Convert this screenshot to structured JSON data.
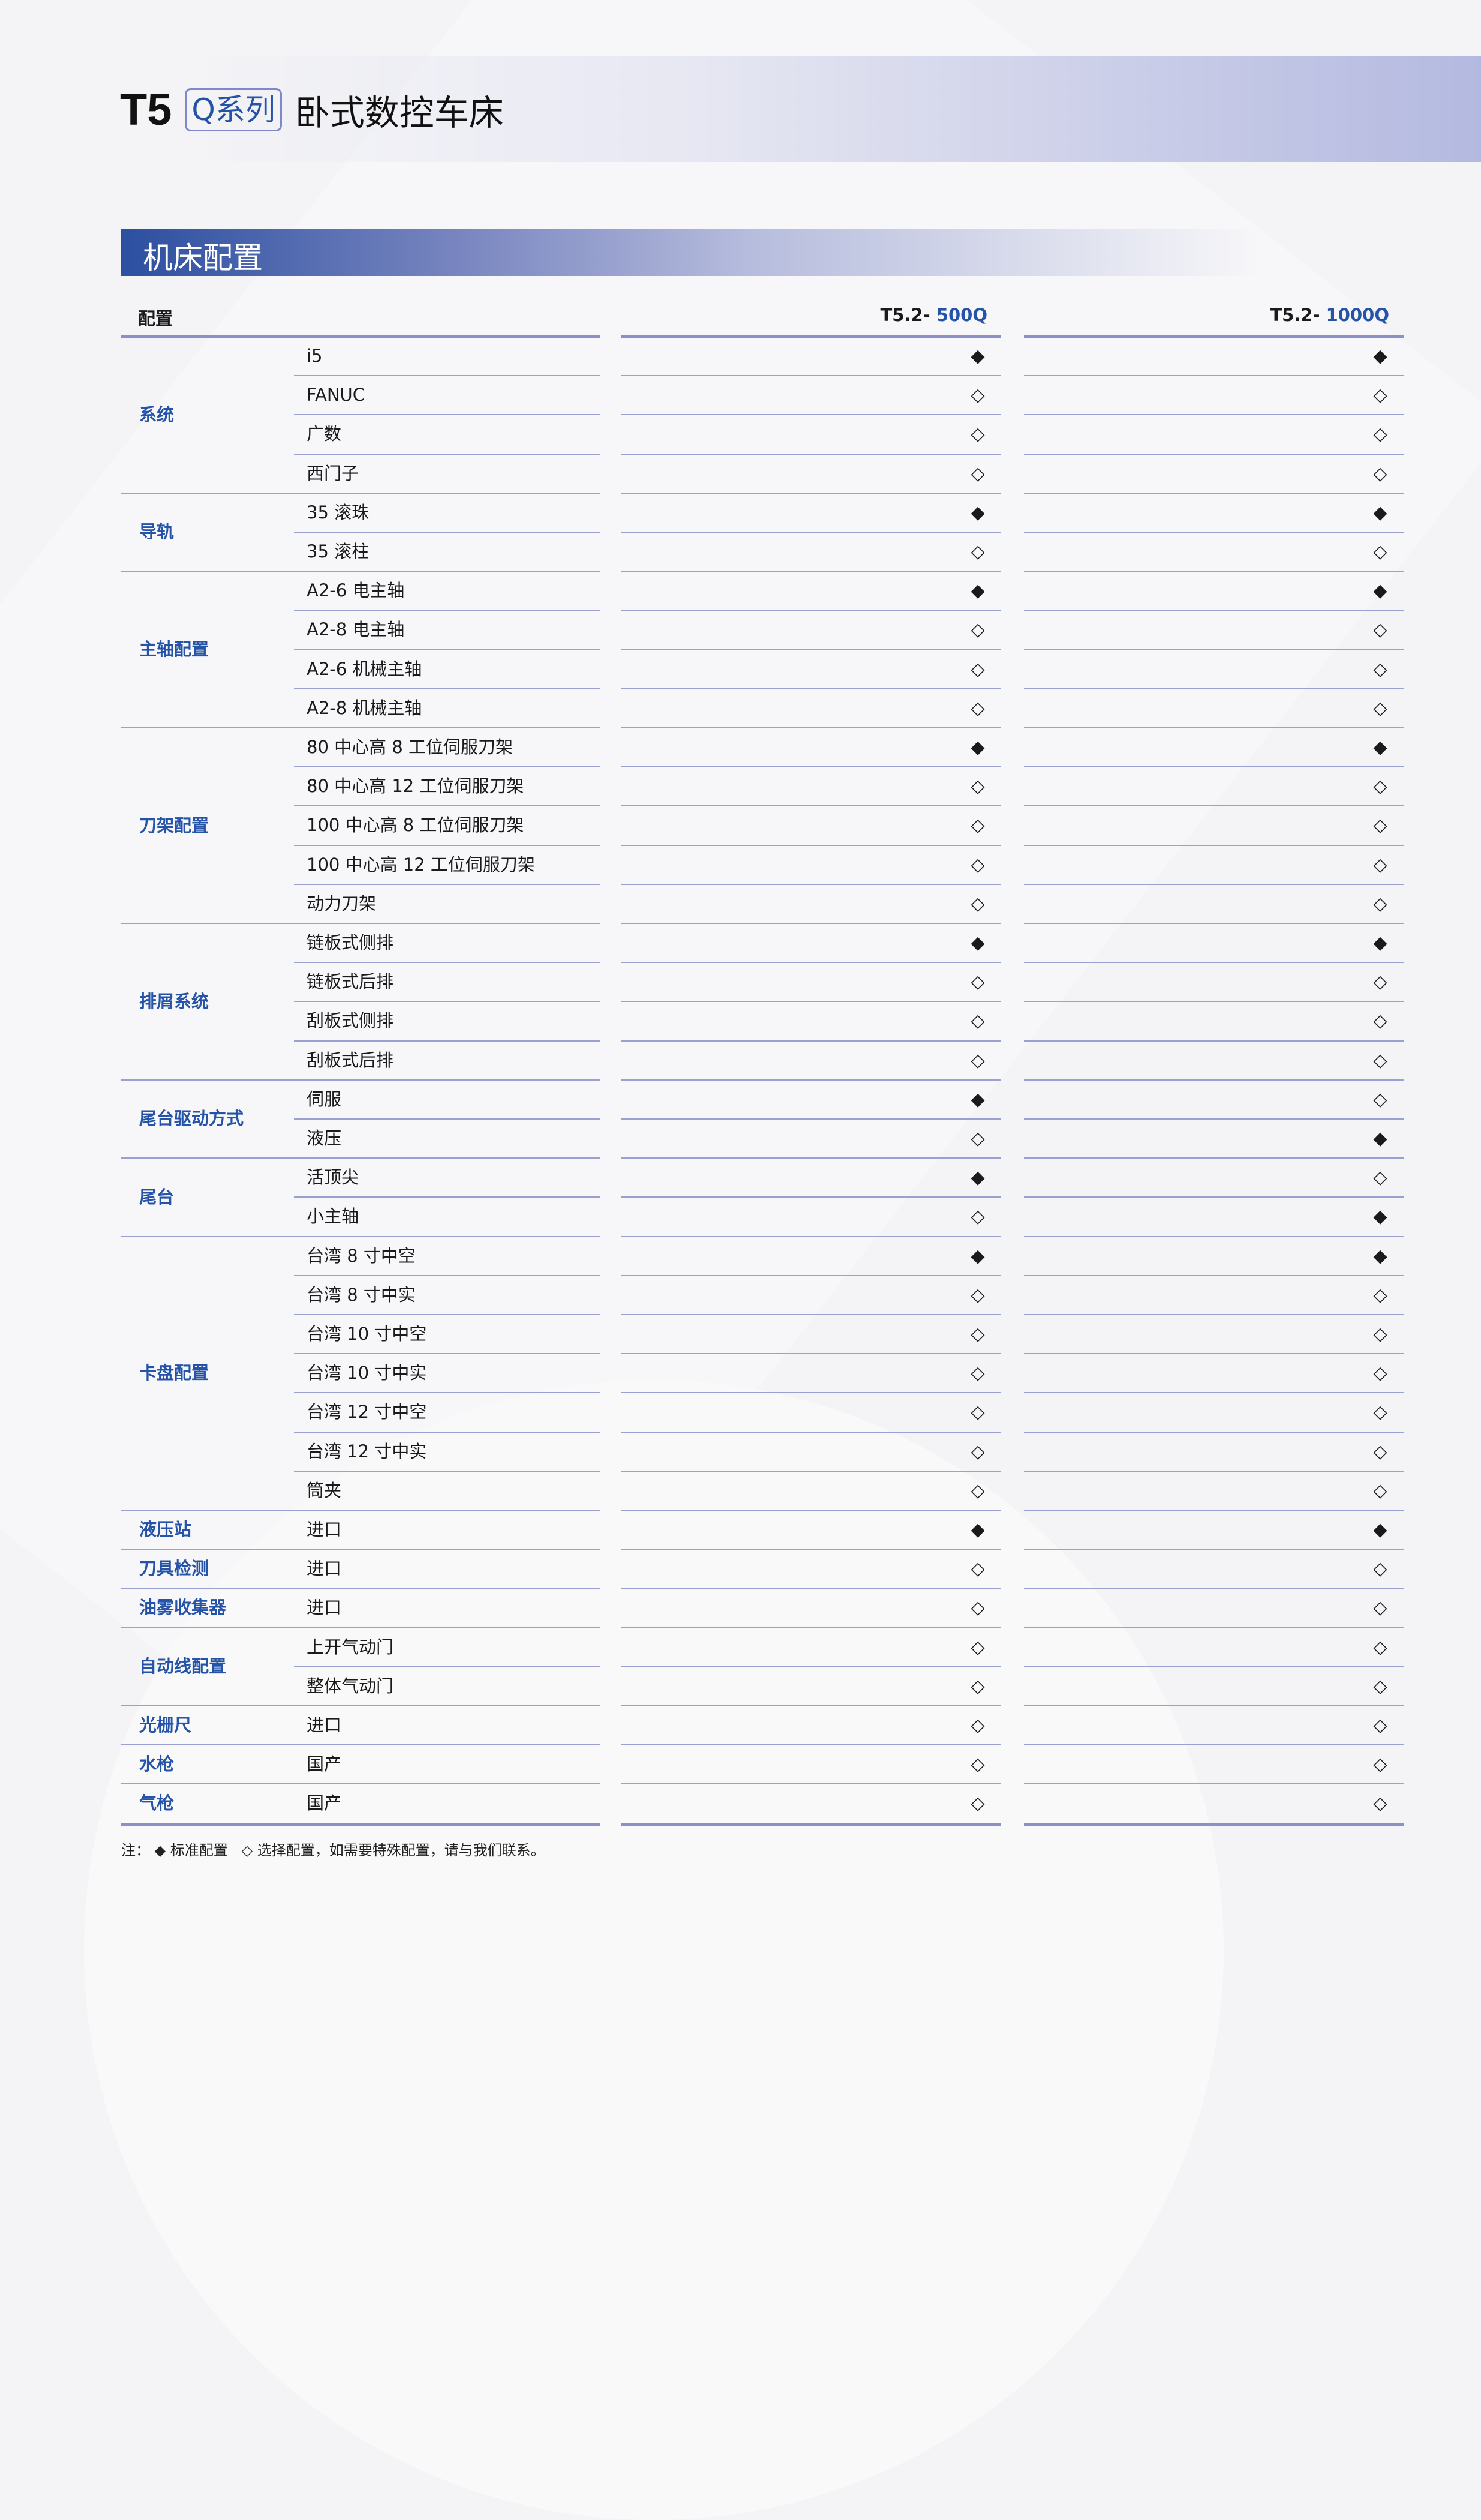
{
  "header": {
    "model": "T5",
    "series_badge": "Q系列",
    "title": "卧式数控车床"
  },
  "section_title": "机床配置",
  "table": {
    "col_config": "配置",
    "models": [
      {
        "prefix": "T5.2- ",
        "suffix": "500Q"
      },
      {
        "prefix": "T5.2- ",
        "suffix": "1000Q"
      }
    ],
    "symbols": {
      "standard": "◆",
      "optional": "◇"
    },
    "groups": [
      {
        "name": "系统",
        "rows": [
          {
            "item": "i5",
            "v": [
              "standard",
              "standard"
            ]
          },
          {
            "item": "FANUC",
            "v": [
              "optional",
              "optional"
            ]
          },
          {
            "item": "广数",
            "v": [
              "optional",
              "optional"
            ]
          },
          {
            "item": "西门子",
            "v": [
              "optional",
              "optional"
            ]
          }
        ]
      },
      {
        "name": "导轨",
        "rows": [
          {
            "item": "35 滚珠",
            "v": [
              "standard",
              "standard"
            ]
          },
          {
            "item": "35 滚柱",
            "v": [
              "optional",
              "optional"
            ]
          }
        ]
      },
      {
        "name": "主轴配置",
        "rows": [
          {
            "item": "A2-6 电主轴",
            "v": [
              "standard",
              "standard"
            ]
          },
          {
            "item": "A2-8 电主轴",
            "v": [
              "optional",
              "optional"
            ]
          },
          {
            "item": "A2-6 机械主轴",
            "v": [
              "optional",
              "optional"
            ]
          },
          {
            "item": "A2-8 机械主轴",
            "v": [
              "optional",
              "optional"
            ]
          }
        ]
      },
      {
        "name": "刀架配置",
        "rows": [
          {
            "item": "80 中心高 8 工位伺服刀架",
            "v": [
              "standard",
              "standard"
            ]
          },
          {
            "item": "80 中心高 12 工位伺服刀架",
            "v": [
              "optional",
              "optional"
            ]
          },
          {
            "item": "100 中心高 8 工位伺服刀架",
            "v": [
              "optional",
              "optional"
            ]
          },
          {
            "item": "100 中心高 12 工位伺服刀架",
            "v": [
              "optional",
              "optional"
            ]
          },
          {
            "item": "动力刀架",
            "v": [
              "optional",
              "optional"
            ]
          }
        ]
      },
      {
        "name": "排屑系统",
        "rows": [
          {
            "item": "链板式侧排",
            "v": [
              "standard",
              "standard"
            ]
          },
          {
            "item": "链板式后排",
            "v": [
              "optional",
              "optional"
            ]
          },
          {
            "item": "刮板式侧排",
            "v": [
              "optional",
              "optional"
            ]
          },
          {
            "item": "刮板式后排",
            "v": [
              "optional",
              "optional"
            ]
          }
        ]
      },
      {
        "name": "尾台驱动方式",
        "rows": [
          {
            "item": "伺服",
            "v": [
              "standard",
              "optional"
            ]
          },
          {
            "item": "液压",
            "v": [
              "optional",
              "standard"
            ]
          }
        ]
      },
      {
        "name": "尾台",
        "rows": [
          {
            "item": "活顶尖",
            "v": [
              "standard",
              "optional"
            ]
          },
          {
            "item": "小主轴",
            "v": [
              "optional",
              "standard"
            ]
          }
        ]
      },
      {
        "name": "卡盘配置",
        "rows": [
          {
            "item": "台湾 8 寸中空",
            "v": [
              "standard",
              "standard"
            ]
          },
          {
            "item": "台湾 8 寸中实",
            "v": [
              "optional",
              "optional"
            ]
          },
          {
            "item": "台湾 10 寸中空",
            "v": [
              "optional",
              "optional"
            ]
          },
          {
            "item": "台湾 10 寸中实",
            "v": [
              "optional",
              "optional"
            ]
          },
          {
            "item": "台湾 12 寸中空",
            "v": [
              "optional",
              "optional"
            ]
          },
          {
            "item": "台湾 12 寸中实",
            "v": [
              "optional",
              "optional"
            ]
          },
          {
            "item": "筒夹",
            "v": [
              "optional",
              "optional"
            ]
          }
        ]
      },
      {
        "name": "液压站",
        "rows": [
          {
            "item": "进口",
            "v": [
              "standard",
              "standard"
            ]
          }
        ]
      },
      {
        "name": "刀具检测",
        "rows": [
          {
            "item": "进口",
            "v": [
              "optional",
              "optional"
            ]
          }
        ]
      },
      {
        "name": "油雾收集器",
        "rows": [
          {
            "item": "进口",
            "v": [
              "optional",
              "optional"
            ]
          }
        ]
      },
      {
        "name": "自动线配置",
        "rows": [
          {
            "item": "上开气动门",
            "v": [
              "optional",
              "optional"
            ]
          },
          {
            "item": "整体气动门",
            "v": [
              "optional",
              "optional"
            ]
          }
        ]
      },
      {
        "name": "光栅尺",
        "rows": [
          {
            "item": "进口",
            "v": [
              "optional",
              "optional"
            ]
          }
        ]
      },
      {
        "name": "水枪",
        "rows": [
          {
            "item": "国产",
            "v": [
              "optional",
              "optional"
            ]
          }
        ]
      },
      {
        "name": "气枪",
        "rows": [
          {
            "item": "国产",
            "v": [
              "optional",
              "optional"
            ]
          }
        ]
      }
    ]
  },
  "note": {
    "prefix": "注：",
    "standard_symbol": "◆",
    "standard_label": "标准配置",
    "optional_symbol": "◇",
    "optional_label": "选择配置，如需要特殊配置，请与我们联系。"
  }
}
